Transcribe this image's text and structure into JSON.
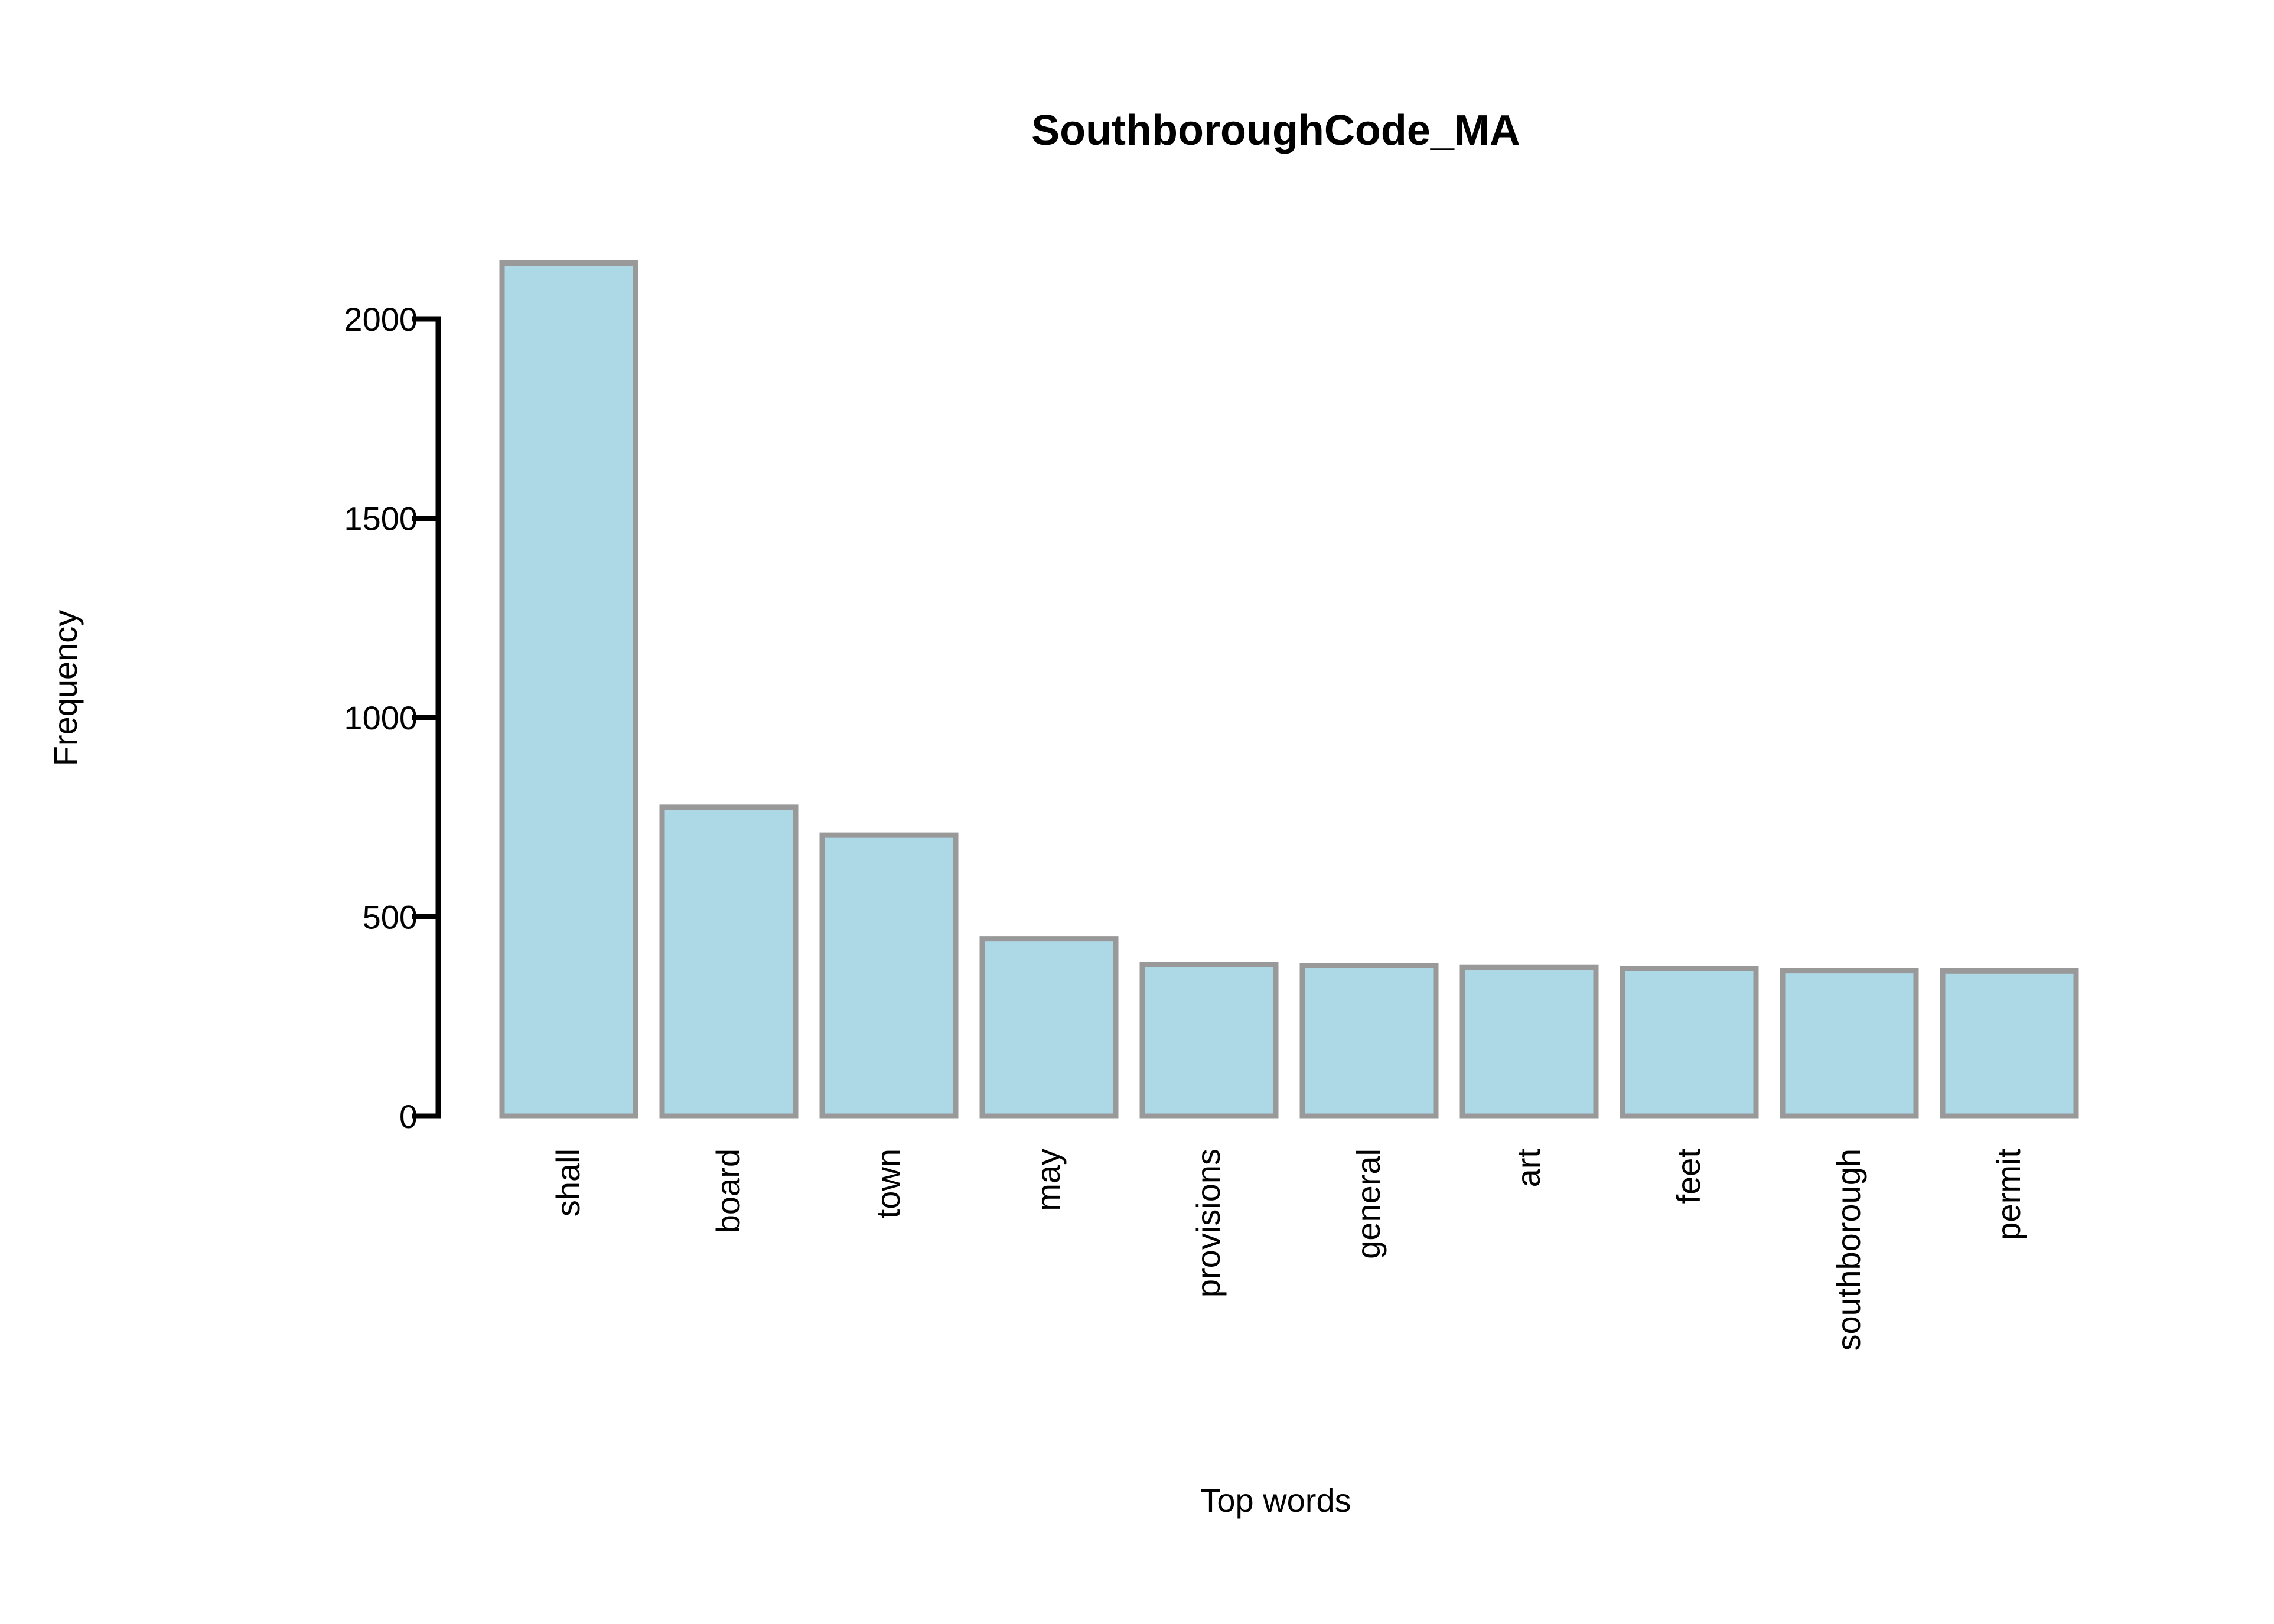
{
  "chart_data": {
    "type": "bar",
    "title": "SouthboroughCode_MA",
    "xlabel": "Top words",
    "ylabel": "Frequency",
    "categories": [
      "shall",
      "board",
      "town",
      "may",
      "provisions",
      "general",
      "art",
      "feet",
      "southborough",
      "permit"
    ],
    "values": [
      2140,
      775,
      705,
      445,
      380,
      378,
      373,
      370,
      365,
      364
    ],
    "ylim": [
      0,
      2000
    ],
    "yticks": [
      0,
      500,
      1000,
      1500,
      2000
    ],
    "ytick_labels": [
      "0",
      "500",
      "1000",
      "1500",
      "2000"
    ],
    "grid": false,
    "legend": "none"
  },
  "colors": {
    "bar_fill": "#add8e6",
    "bar_stroke": "#999999",
    "axis": "#000000",
    "background": "#ffffff"
  }
}
